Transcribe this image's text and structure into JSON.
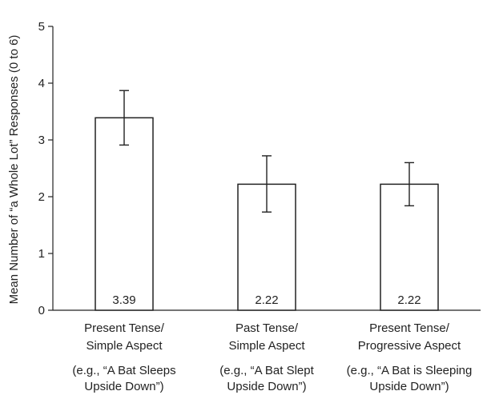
{
  "chart_data": {
    "type": "bar",
    "title": "",
    "xlabel": "",
    "ylabel": "Mean Number of “a Whole Lot” Responses (0 to 6)",
    "ylim": [
      0,
      5
    ],
    "yticks": [
      "0",
      "1",
      "2",
      "3",
      "4",
      "5"
    ],
    "grid": false,
    "legend": "none",
    "categories": [
      {
        "line1": "Present Tense/",
        "line2": "Simple Aspect",
        "example1": "(e.g., “A Bat Sleeps",
        "example2": "Upside Down”)"
      },
      {
        "line1": "Past Tense/",
        "line2": "Simple Aspect",
        "example1": "(e.g., “A Bat Slept",
        "example2": "Upside Down”)"
      },
      {
        "line1": "Present Tense/",
        "line2": "Progressive Aspect",
        "example1": "(e.g., “A Bat is Sleeping",
        "example2": "Upside Down”)"
      }
    ],
    "values": [
      3.39,
      2.22,
      2.22
    ],
    "value_labels": [
      "3.39",
      "2.22",
      "2.22"
    ],
    "error_bars": [
      {
        "low": 2.91,
        "high": 3.87
      },
      {
        "low": 1.73,
        "high": 2.72
      },
      {
        "low": 1.84,
        "high": 2.6
      }
    ],
    "bar_fill": "#ffffff",
    "bar_stroke": "#222222"
  }
}
